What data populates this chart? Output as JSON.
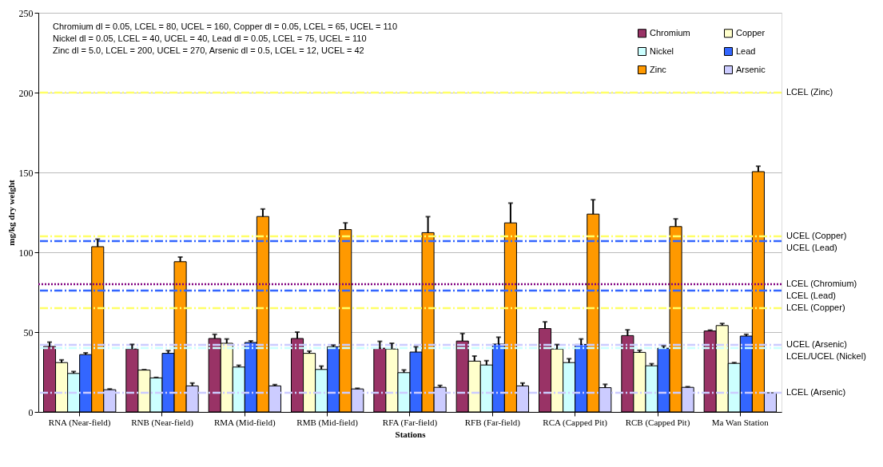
{
  "chart_data": {
    "type": "bar",
    "xlabel": "Stations",
    "ylabel": "mg/kg dry weight",
    "categories": [
      "RNA (Near-field)",
      "RNB (Near-field)",
      "RMA (Mid-field)",
      "RMB (Mid-field)",
      "RFA (Far-field)",
      "RFB (Far-field)",
      "RCA (Capped Pit)",
      "RCB (Capped Pit)",
      "Ma Wan Station"
    ],
    "series": [
      {
        "name": "Chromium",
        "color": "#993366",
        "values": [
          41.0,
          39.4,
          46.0,
          46.0,
          39.9,
          44.4,
          52.2,
          47.8,
          50.7
        ],
        "errors": [
          [
            41.0,
            43.7
          ],
          [
            39.4,
            42.3
          ],
          [
            46.0,
            48.6
          ],
          [
            46.0,
            50.0
          ],
          [
            39.9,
            44.2
          ],
          [
            44.4,
            49.1
          ],
          [
            52.2,
            56.4
          ],
          [
            47.8,
            51.4
          ],
          [
            50.7,
            51.2
          ]
        ]
      },
      {
        "name": "Copper",
        "color": "#ffffcc",
        "values": [
          30.9,
          26.2,
          43.0,
          36.7,
          39.4,
          31.8,
          39.4,
          37.3,
          54.1
        ],
        "errors": [
          [
            30.9,
            32.6
          ],
          [
            26.2,
            26.5
          ],
          [
            43.0,
            45.7
          ],
          [
            36.7,
            38.1
          ],
          [
            39.4,
            43.0
          ],
          [
            31.8,
            35.0
          ],
          [
            39.4,
            42.2
          ],
          [
            37.3,
            38.6
          ],
          [
            54.1,
            55.4
          ]
        ]
      },
      {
        "name": "Nickel",
        "color": "#ccffff",
        "values": [
          24.1,
          21.3,
          28.1,
          26.6,
          24.6,
          29.4,
          30.9,
          28.9,
          30.4
        ],
        "errors": [
          [
            24.1,
            25.3
          ],
          [
            21.3,
            21.6
          ],
          [
            28.1,
            29.2
          ],
          [
            26.6,
            28.7
          ],
          [
            24.6,
            26.3
          ],
          [
            29.4,
            32.1
          ],
          [
            30.9,
            33.3
          ],
          [
            28.9,
            30.2
          ],
          [
            30.4,
            30.9
          ]
        ]
      },
      {
        "name": "Lead",
        "color": "#3366ff",
        "values": [
          35.9,
          36.7,
          43.5,
          40.8,
          37.5,
          42.5,
          42.3,
          39.9,
          47.5
        ],
        "errors": [
          [
            35.9,
            37.0
          ],
          [
            36.7,
            38.4
          ],
          [
            43.5,
            44.5
          ],
          [
            40.8,
            41.8
          ],
          [
            37.5,
            40.8
          ],
          [
            42.5,
            46.8
          ],
          [
            42.3,
            45.7
          ],
          [
            39.9,
            41.3
          ],
          [
            47.5,
            48.6
          ]
        ]
      },
      {
        "name": "Zinc",
        "color": "#ff9900",
        "values": [
          103.5,
          94.1,
          122.4,
          114.2,
          112.3,
          118.4,
          123.9,
          116.1,
          150.5
        ],
        "errors": [
          [
            103.5,
            108.2
          ],
          [
            94.1,
            97.0
          ],
          [
            122.4,
            127.1
          ],
          [
            114.2,
            118.4
          ],
          [
            112.3,
            122.3
          ],
          [
            118.4,
            130.8
          ],
          [
            123.9,
            132.9
          ],
          [
            116.1,
            120.9
          ],
          [
            150.5,
            153.9
          ]
        ]
      },
      {
        "name": "Arsenic",
        "color": "#ccccff",
        "values": [
          13.9,
          16.3,
          16.3,
          14.4,
          15.4,
          16.3,
          15.2,
          15.4,
          12.0
        ],
        "errors": [
          [
            13.9,
            14.4
          ],
          [
            16.3,
            18.1
          ],
          [
            16.3,
            17.1
          ],
          [
            14.4,
            14.8
          ],
          [
            15.4,
            16.6
          ],
          [
            16.3,
            18.1
          ],
          [
            15.2,
            17.3
          ],
          [
            15.4,
            15.8
          ],
          null
        ]
      }
    ],
    "ylim": [
      0,
      250
    ],
    "yticks": [
      0,
      50,
      100,
      150,
      200,
      250
    ],
    "grid": "y",
    "legend": "top right",
    "ref_lines": [
      {
        "axis": "y",
        "value": 200,
        "label": "LCEL (Zinc)",
        "color": "#ffff66",
        "line_style": "dashed"
      },
      {
        "axis": "y",
        "value": 110,
        "label": "UCEL (Copper)",
        "color": "#ffff66",
        "line_style": "dashed"
      },
      {
        "axis": "y",
        "value": 107,
        "label": "UCEL (Lead)",
        "color": "#3366ff",
        "line_style": "dashed"
      },
      {
        "axis": "y",
        "value": 80,
        "label": "LCEL (Chromium)",
        "color": "#800080",
        "line_style": "dotted"
      },
      {
        "axis": "y",
        "value": 76,
        "label": "LCEL (Lead)",
        "color": "#3366ff",
        "line_style": "dashed"
      },
      {
        "axis": "y",
        "value": 65,
        "label": "LCEL (Copper)",
        "color": "#ffff66",
        "line_style": "dashed"
      },
      {
        "axis": "y",
        "value": 42,
        "label": "UCEL (Arsenic)",
        "color": "#ccccff",
        "line_style": "dashed"
      },
      {
        "axis": "y",
        "value": 40,
        "label": "LCEL/UCEL (Nickel)",
        "color": "#ccffff",
        "line_style": "dashed"
      },
      {
        "axis": "y",
        "value": 12,
        "label": "LCEL (Arsenic)",
        "color": "#ccccff",
        "line_style": "dashed"
      }
    ],
    "annotations": [
      "Chromium dl = 0.05, LCEL = 80, UCEL = 160, Copper dl = 0.05, LCEL = 65, UCEL = 110",
      "Nickel dl = 0.05, LCEL = 40, UCEL = 40, Lead dl = 0.05, LCEL = 75, UCEL = 110",
      "Zinc dl = 5.0, LCEL = 200, UCEL = 270, Arsenic dl = 0.5, LCEL = 12, UCEL = 42"
    ]
  }
}
